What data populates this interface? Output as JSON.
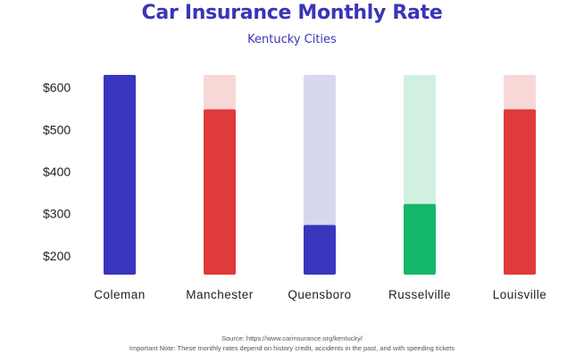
{
  "chart_data": {
    "type": "bar",
    "title": "Car Insurance Monthly Rate",
    "subtitle": "Kentucky Cities",
    "categories": [
      "Coleman",
      "Manchester",
      "Quensboro",
      "Russelville",
      "Louisville"
    ],
    "values": [
      630,
      548,
      273,
      323,
      548
    ],
    "background_max": 630,
    "ylim": [
      155,
      630
    ],
    "yticks": [
      200,
      300,
      400,
      500,
      600
    ],
    "ytick_labels": [
      "$200",
      "$300",
      "$400",
      "$500",
      "$600"
    ],
    "bar_colors": [
      "#3a35bd",
      "#e03a3a",
      "#3a35bd",
      "#14b86a",
      "#e03a3a"
    ],
    "track_colors": [
      "#3a35bd",
      "#f8d7d7",
      "#d8d7f0",
      "#d2f0e1",
      "#f8d7d7"
    ],
    "xlabel": "",
    "ylabel": "",
    "grid": false
  },
  "footer": {
    "source": "Source: https://www.carinsurance.org/kentucky/",
    "note": "Important Note: These monthly rates depend on history credit, accidents in the past, and with speeding tickets"
  }
}
